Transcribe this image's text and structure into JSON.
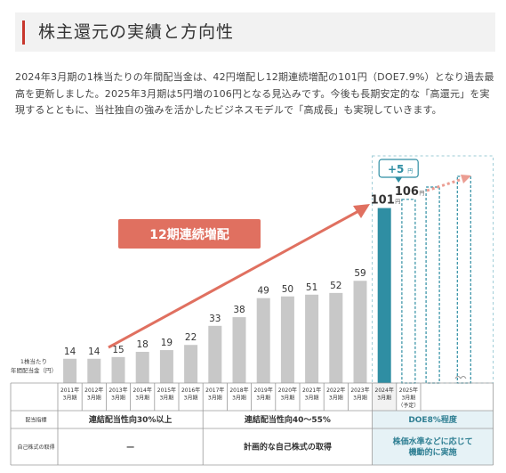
{
  "header": {
    "title": "株主還元の実績と方向性"
  },
  "intro": "2024年3月期の1株当たりの年間配当金は、42円増配し12期連続増配の101円（DOE7.9%）となり過去最高を更新しました。2025年3月期は5円増の106円となる見込みです。今後も長期安定的な「高還元」を実現するとともに、当社独自の強みを活かしたビジネスモデルで「高成長」も実現していきます。",
  "chart_data": {
    "type": "bar",
    "categories": [
      [
        "2011年",
        "3月期"
      ],
      [
        "2012年",
        "3月期"
      ],
      [
        "2013年",
        "3月期"
      ],
      [
        "2014年",
        "3月期"
      ],
      [
        "2015年",
        "3月期"
      ],
      [
        "2016年",
        "3月期"
      ],
      [
        "2017年",
        "3月期"
      ],
      [
        "2018年",
        "3月期"
      ],
      [
        "2019年",
        "3月期"
      ],
      [
        "2020年",
        "3月期"
      ],
      [
        "2021年",
        "3月期"
      ],
      [
        "2022年",
        "3月期"
      ],
      [
        "2023年",
        "3月期"
      ],
      [
        "2024年",
        "3月期"
      ],
      [
        "2025年",
        "3月期",
        "（予定）"
      ]
    ],
    "values": [
      14,
      14,
      15,
      18,
      19,
      22,
      33,
      38,
      49,
      50,
      51,
      52,
      59,
      101,
      106
    ],
    "value_labels": [
      "14",
      "14",
      "15",
      "18",
      "19",
      "22",
      "33",
      "38",
      "49",
      "50",
      "51",
      "52",
      "59",
      "101",
      "106"
    ],
    "unit": "円",
    "ylabel": [
      "1株当たり",
      "年間配当金（円）"
    ],
    "ylim": [
      0,
      110
    ],
    "highlight_index": 13,
    "forecast_index": 14,
    "extra_dashed_bars": 2,
    "callout": "12期連続増配",
    "increase_label": "+5",
    "increase_unit": "円",
    "colors": {
      "past": "#c8c8c8",
      "highlight": "#2f8ea3",
      "forecast_border": "#2f8ea3",
      "arrow": "#e07060",
      "callout": "#e07060"
    },
    "rows": [
      {
        "label": "配当指標",
        "cells": [
          {
            "text": "連結配当性向30%以上",
            "from": 0,
            "to": 5
          },
          {
            "text": "連結配当性向40～55%",
            "from": 6,
            "to": 12
          },
          {
            "text": "DOE8%程度",
            "from": 13,
            "to": 17,
            "highlight": true
          }
        ]
      },
      {
        "label": "自己株式の取得",
        "cells": [
          {
            "text": "—",
            "from": 0,
            "to": 5
          },
          {
            "text": "計画的な自己株式の取得",
            "from": 6,
            "to": 12
          },
          {
            "text": [
              "株価水準などに応じて",
              "機動的に実施"
            ],
            "from": 13,
            "to": 17,
            "highlight": true
          }
        ]
      }
    ]
  }
}
